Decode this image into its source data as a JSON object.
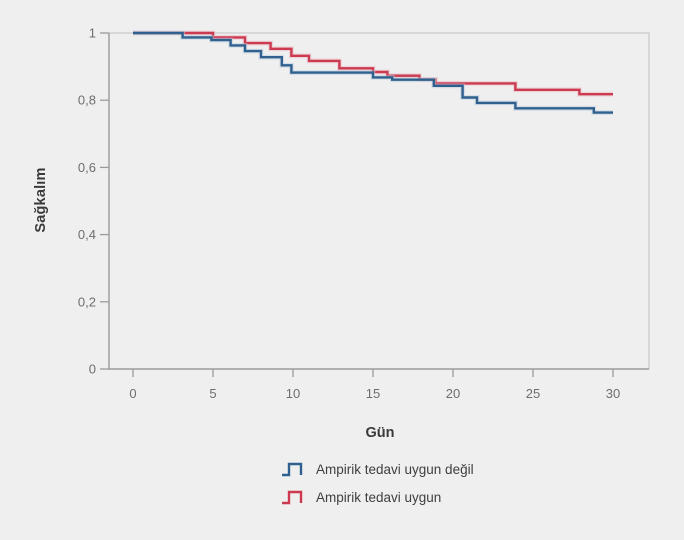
{
  "chart_data": {
    "type": "line",
    "subtype": "kaplan-meier-step",
    "xlabel": "Gün",
    "ylabel": "Sağkalım",
    "xlim": [
      -1.5,
      32.25
    ],
    "ylim": [
      0,
      1
    ],
    "grid": false,
    "legend_position": "bottom",
    "x_ticks": {
      "values": [
        0,
        5,
        10,
        15,
        20,
        25,
        30
      ],
      "labels": [
        "0",
        "5",
        "10",
        "15",
        "20",
        "25",
        "30"
      ]
    },
    "y_ticks": {
      "values": [
        0,
        0.2,
        0.4,
        0.6,
        0.8,
        1
      ],
      "labels": [
        "0",
        "0,2",
        "0,4",
        "0,6",
        "0,8",
        "1"
      ]
    },
    "colors": {
      "background": "#efeff0",
      "frame": "#cbcbcb",
      "axis": "#9b9b9b",
      "tick_label": "#6e6e6e",
      "title_text": "#3a3a3a",
      "legend_text": "#3f3f3f"
    },
    "series": [
      {
        "name": "Ampirik tedavi uygun değil",
        "color": "#2f608e",
        "halo": "#b9cbdc",
        "points": [
          [
            0,
            1.0
          ],
          [
            3.1,
            0.987
          ],
          [
            4.9,
            0.979
          ],
          [
            6.1,
            0.963
          ],
          [
            7.0,
            0.946
          ],
          [
            8.0,
            0.928
          ],
          [
            9.3,
            0.904
          ],
          [
            9.9,
            0.882
          ],
          [
            15.0,
            0.868
          ],
          [
            16.2,
            0.861
          ],
          [
            18.8,
            0.843
          ],
          [
            20.6,
            0.808
          ],
          [
            21.5,
            0.792
          ],
          [
            23.9,
            0.776
          ],
          [
            28.8,
            0.763
          ],
          [
            30.0,
            0.763
          ]
        ]
      },
      {
        "name": "Ampirik tedavi uygun",
        "color": "#cc3a50",
        "halo": "#ecb7c0",
        "points": [
          [
            0,
            1.0
          ],
          [
            5.0,
            0.987
          ],
          [
            7.0,
            0.97
          ],
          [
            8.6,
            0.953
          ],
          [
            9.9,
            0.932
          ],
          [
            11.0,
            0.917
          ],
          [
            12.9,
            0.895
          ],
          [
            15.0,
            0.884
          ],
          [
            15.9,
            0.873
          ],
          [
            17.9,
            0.862
          ],
          [
            18.9,
            0.85
          ],
          [
            23.9,
            0.831
          ],
          [
            27.9,
            0.818
          ],
          [
            30.0,
            0.818
          ]
        ]
      }
    ]
  }
}
